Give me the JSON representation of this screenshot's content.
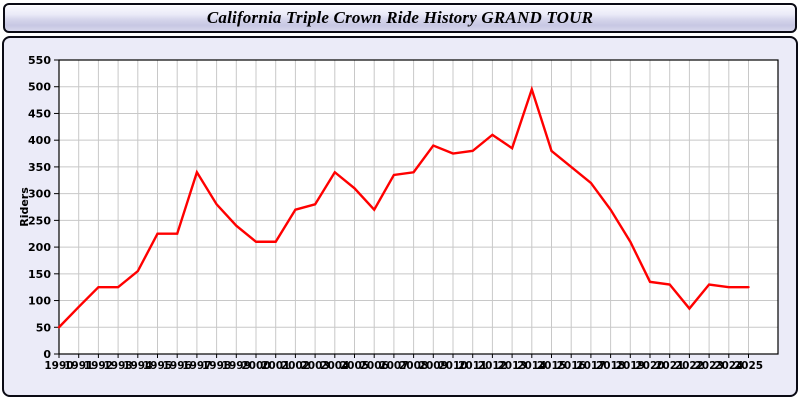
{
  "header": {
    "title": "California Triple Crown Ride History GRAND TOUR"
  },
  "chart_data": {
    "type": "line",
    "title": "California Triple Crown Ride History GRAND TOUR",
    "xlabel": "",
    "ylabel": "Riders",
    "ylim": [
      0,
      550
    ],
    "ytick_interval": 50,
    "grid": true,
    "legend_position": "none",
    "x": [
      1990,
      1991,
      1992,
      1993,
      1994,
      1995,
      1996,
      1997,
      1998,
      1999,
      2000,
      2001,
      2002,
      2003,
      2004,
      2005,
      2006,
      2007,
      2008,
      2009,
      2010,
      2011,
      2012,
      2013,
      2014,
      2015,
      2016,
      2017,
      2018,
      2019,
      2020,
      2021,
      2022,
      2023,
      2024,
      2025
    ],
    "series": [
      {
        "name": "Riders",
        "color": "#ff0000",
        "values": [
          50,
          88,
          125,
          125,
          155,
          225,
          225,
          340,
          280,
          240,
          210,
          210,
          270,
          280,
          340,
          310,
          270,
          335,
          340,
          390,
          375,
          380,
          410,
          385,
          495,
          380,
          350,
          320,
          270,
          210,
          135,
          130,
          85,
          130,
          125,
          125
        ]
      }
    ],
    "colors": {
      "line": "#ff0000",
      "grid": "#c8c8c8",
      "plot_background": "#ffffff",
      "panel_background": "#ebebf8",
      "axis": "#000000",
      "banner_background": "#d6d6ec",
      "text": "#000000"
    }
  }
}
